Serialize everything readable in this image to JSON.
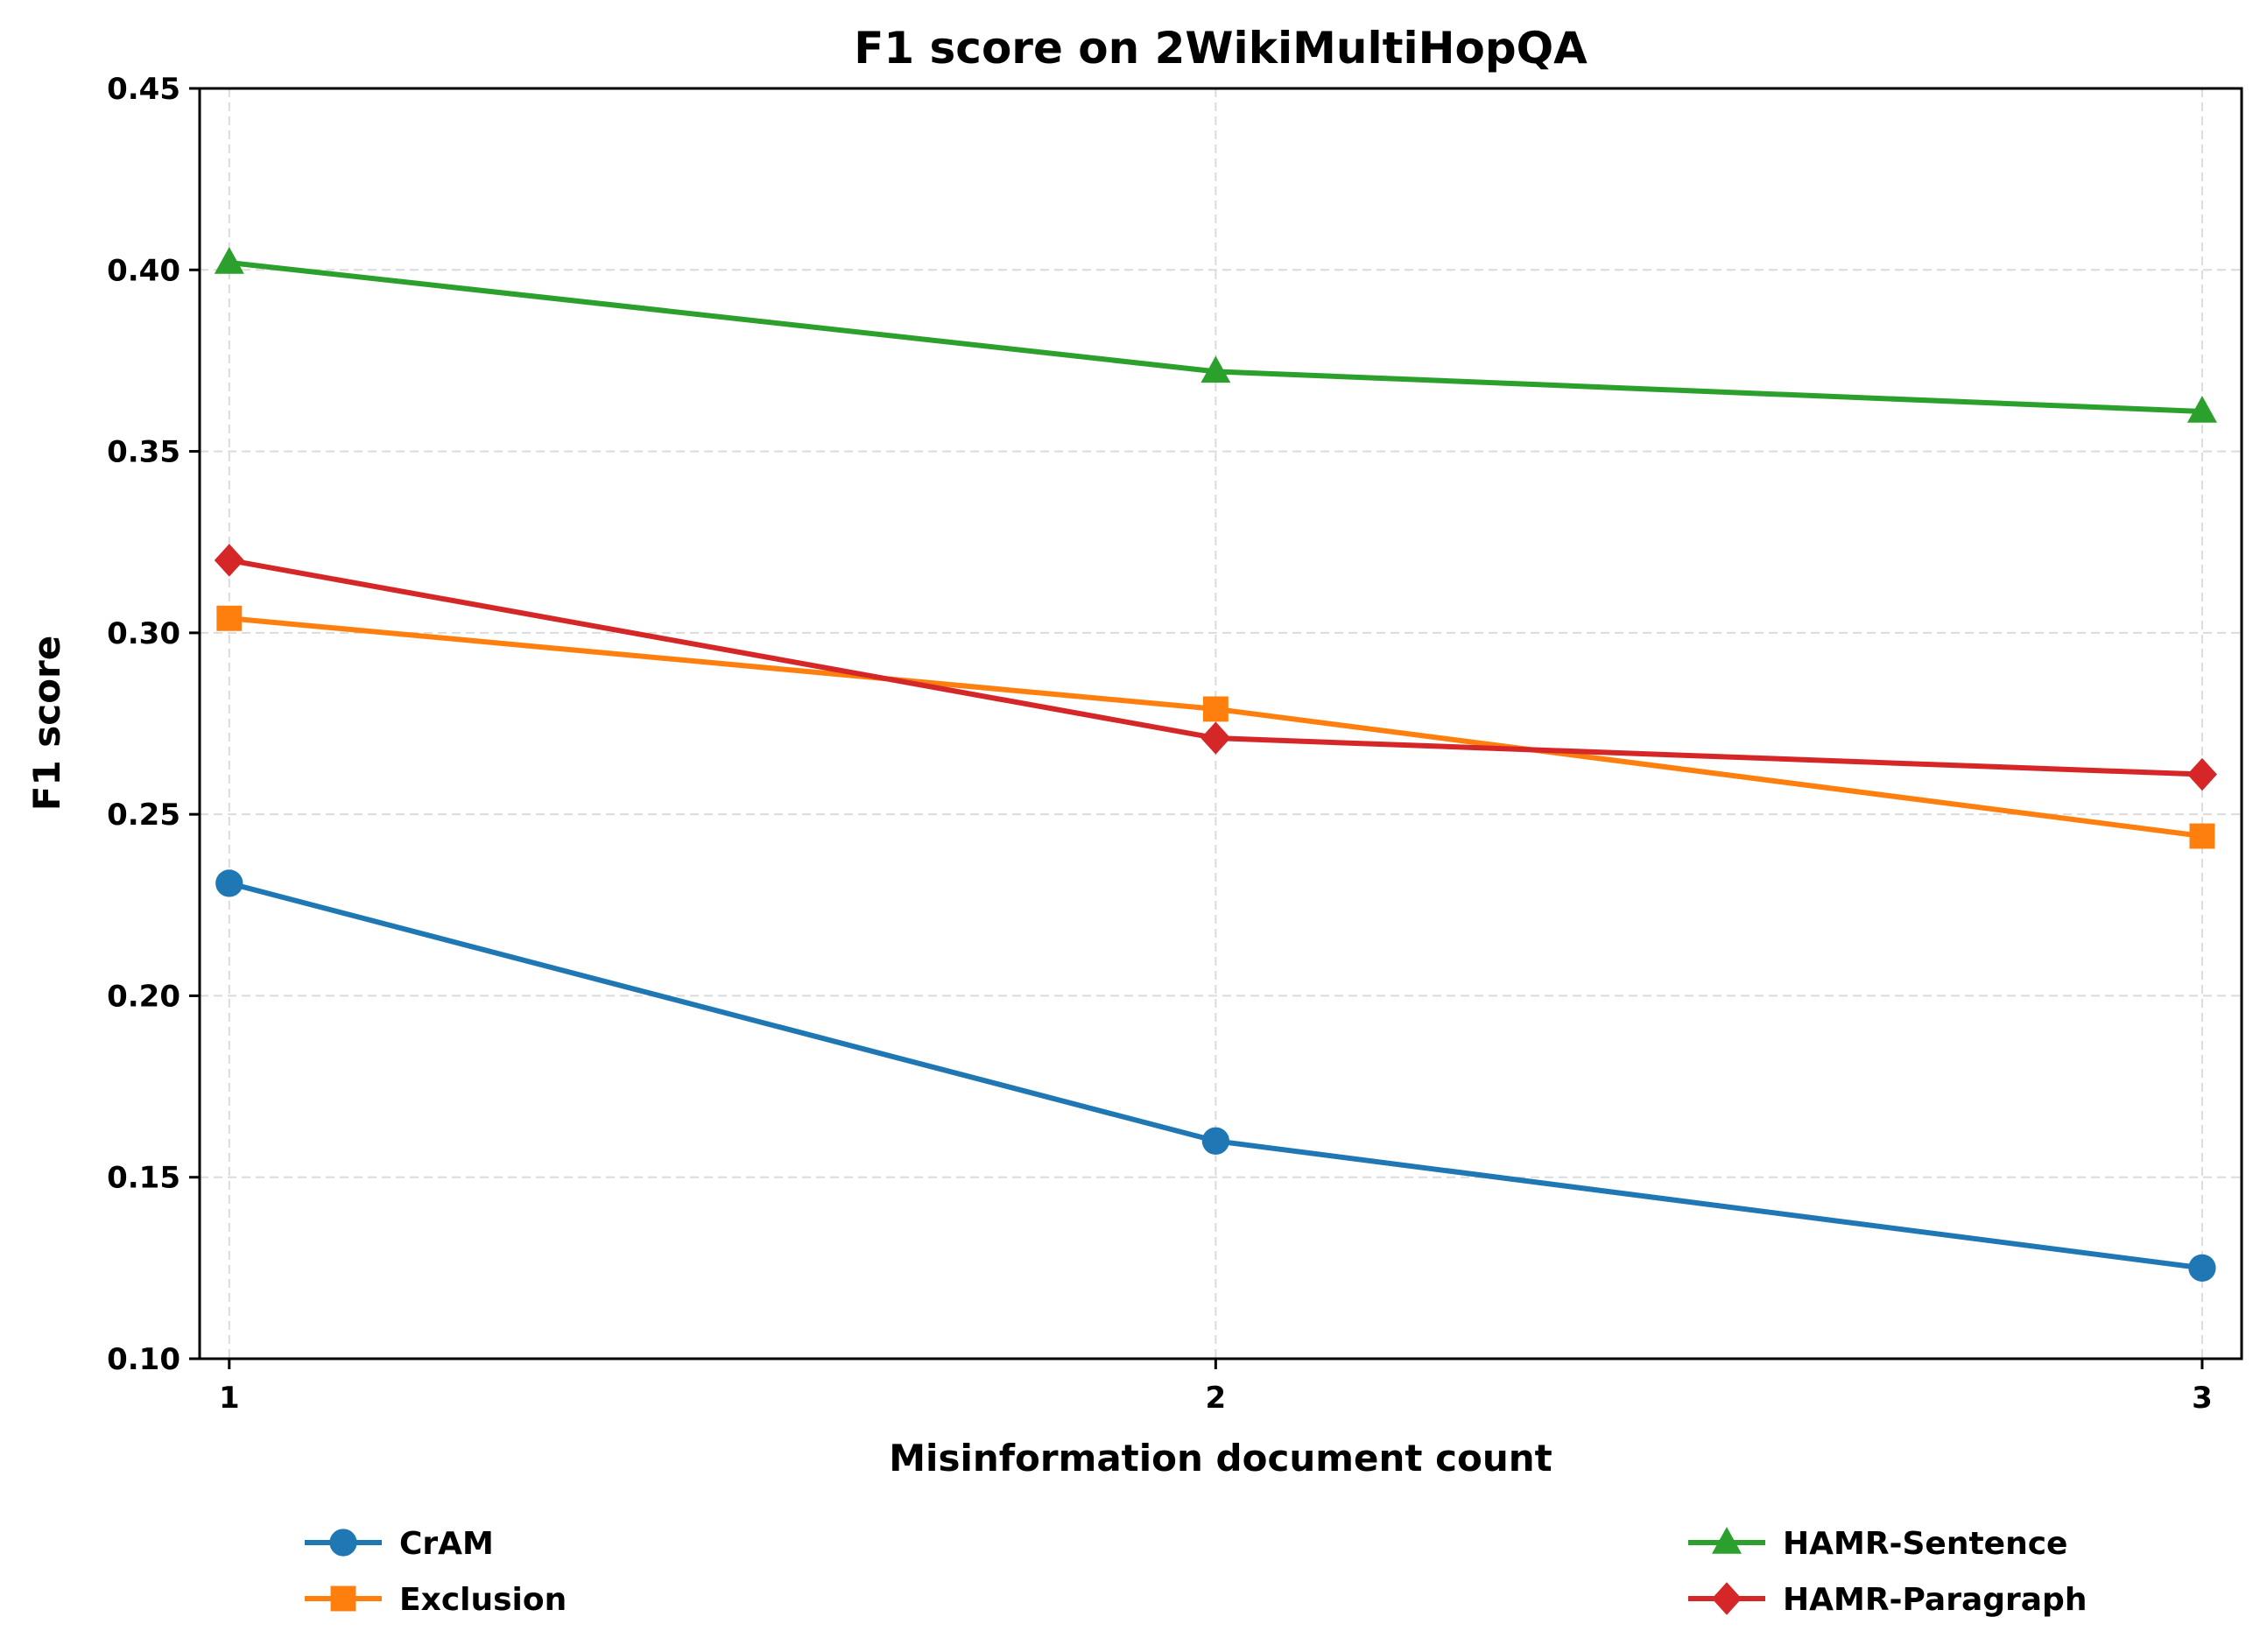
{
  "chart_data": {
    "type": "line",
    "title": "F1 score on 2WikiMultiHopQA",
    "xlabel": "Misinformation document count",
    "ylabel": "F1 score",
    "x": [
      1,
      2,
      3
    ],
    "x_tick_labels": [
      "1",
      "2",
      "3"
    ],
    "xlim": [
      0.97,
      3.04
    ],
    "ylim": [
      0.1,
      0.45
    ],
    "y_ticks": [
      0.1,
      0.15,
      0.2,
      0.25,
      0.3,
      0.35,
      0.4,
      0.45
    ],
    "y_tick_labels": [
      "0.10",
      "0.15",
      "0.20",
      "0.25",
      "0.30",
      "0.35",
      "0.40",
      "0.45"
    ],
    "grid": true,
    "legend_position": "bottom, below axes, two columns",
    "series": [
      {
        "name": "CrAM",
        "values": [
          0.231,
          0.16,
          0.125
        ],
        "color": "#1f77b4",
        "marker": "circle"
      },
      {
        "name": "Exclusion",
        "values": [
          0.304,
          0.279,
          0.244
        ],
        "color": "#ff7f0e",
        "marker": "square"
      },
      {
        "name": "HAMR-Sentence",
        "values": [
          0.402,
          0.372,
          0.361
        ],
        "color": "#2ca02c",
        "marker": "triangle"
      },
      {
        "name": "HAMR-Paragraph",
        "values": [
          0.32,
          0.271,
          0.261
        ],
        "color": "#d62728",
        "marker": "diamond"
      }
    ]
  }
}
